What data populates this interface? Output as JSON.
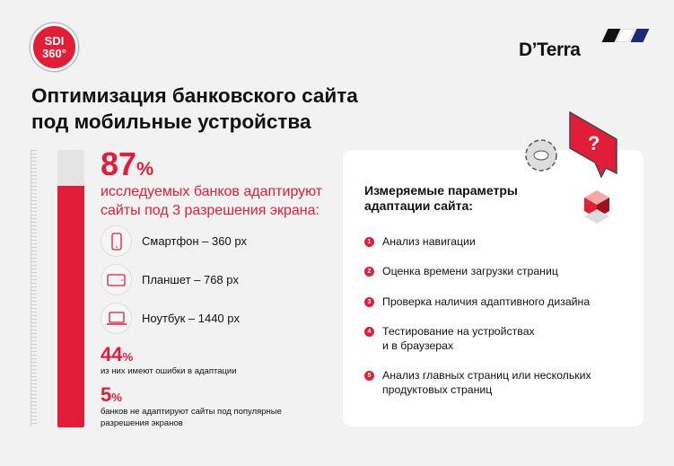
{
  "logo": {
    "line1": "SDI",
    "line2": "360°"
  },
  "brand": {
    "name": "D’Terra",
    "stripe_colors": [
      "#111111",
      "#ffffff",
      "#1e2a78"
    ]
  },
  "title": {
    "line1": "Оптимизация банковского сайта",
    "line2": "под мобильные устройства"
  },
  "colors": {
    "accent": "#e11d38",
    "background": "#f2f2f2"
  },
  "main_stat": {
    "value": "87",
    "unit": "%",
    "fill_percent": 87,
    "line1": "исследуемых банков адаптируют",
    "line2": "сайты под 3 разрешения экрана:"
  },
  "devices": [
    {
      "icon": "smartphone-icon",
      "label": "Смартфон – 360 px"
    },
    {
      "icon": "tablet-icon",
      "label": "Планшет – 768 px"
    },
    {
      "icon": "laptop-icon",
      "label": "Ноутбук – 1440 px"
    }
  ],
  "stats": [
    {
      "value": "44",
      "unit": "%",
      "line1": "из них имеют ошибки в адаптации",
      "line2": ""
    },
    {
      "value": "5",
      "unit": "%",
      "line1": "банков не адаптируют сайты под популярные",
      "line2": "разрешения экранов"
    }
  ],
  "card": {
    "title1": "Измеряемые параметры",
    "title2": "адаптации сайта:",
    "items": [
      {
        "n": "1",
        "line1": "Анализ навигации",
        "line2": ""
      },
      {
        "n": "2",
        "line1": "Оценка времени загрузки страниц",
        "line2": ""
      },
      {
        "n": "3",
        "line1": "Проверка наличия адаптивного дизайна",
        "line2": ""
      },
      {
        "n": "4",
        "line1": "Тестирование на устройствах",
        "line2": "и в браузерах"
      },
      {
        "n": "5",
        "line1": "Анализ главных страниц или нескольких",
        "line2": "продуктовых страниц"
      }
    ]
  },
  "decor": {
    "question": "?"
  }
}
